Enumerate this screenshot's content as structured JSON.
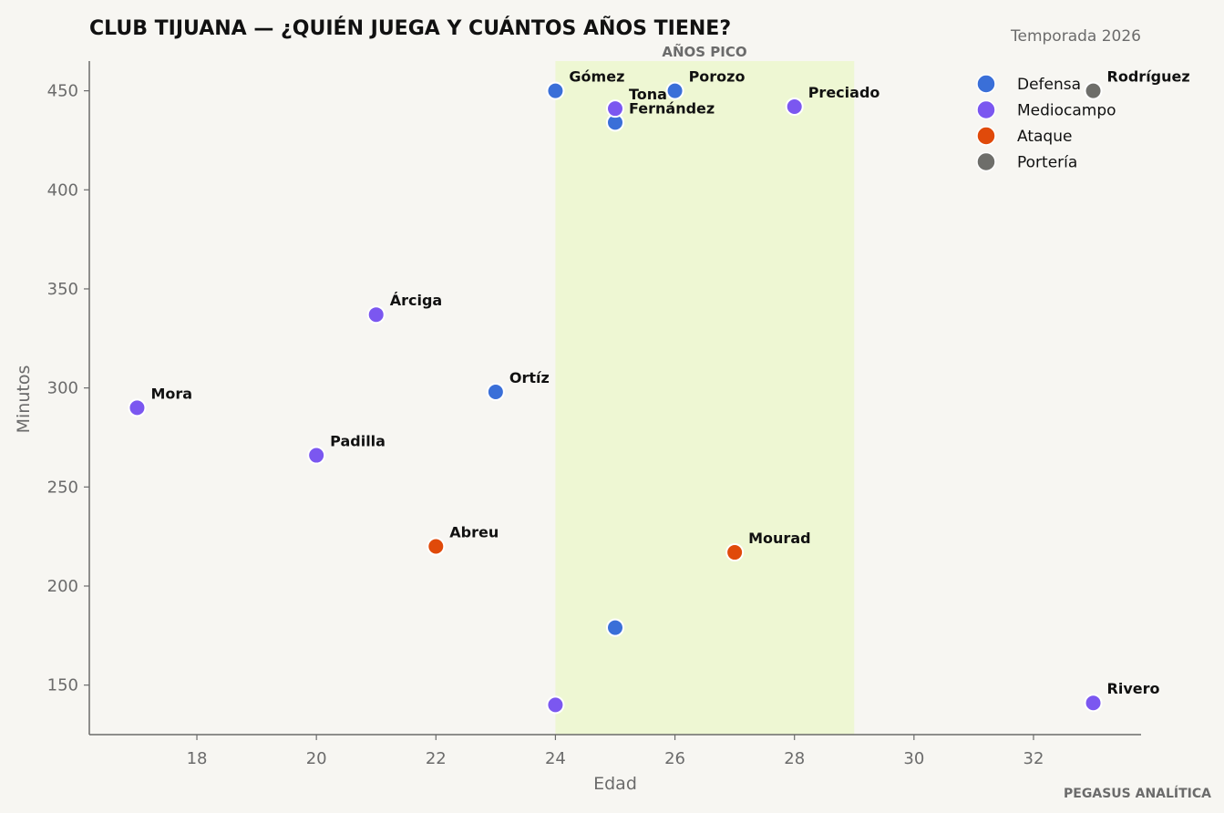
{
  "chart_data": {
    "type": "scatter",
    "title": "CLUB TIJUANA — ¿QUIÉN JUEGA Y CUÁNTOS AÑOS TIENE?",
    "subtitle": "Temporada 2026",
    "xlabel": "Edad",
    "ylabel": "Minutos",
    "xlim": [
      16.2,
      33.8
    ],
    "ylim": [
      125,
      465
    ],
    "xticks": [
      18,
      20,
      22,
      24,
      26,
      28,
      30,
      32
    ],
    "yticks": [
      150,
      200,
      250,
      300,
      350,
      400,
      450
    ],
    "grid": false,
    "legend_position": "top-right",
    "highlight_band": {
      "label": "AÑOS PICO",
      "x_from": 24,
      "x_to": 29,
      "color": "#eef7d3"
    },
    "series": [
      {
        "name": "Defensa",
        "color": "#3a6fd8",
        "points": [
          {
            "x": 24,
            "y": 450,
            "label": "Gómez"
          },
          {
            "x": 26,
            "y": 450,
            "label": "Porozo"
          },
          {
            "x": 25,
            "y": 434,
            "label": "Fernández"
          },
          {
            "x": 23,
            "y": 298,
            "label": "Ortíz"
          },
          {
            "x": 25,
            "y": 179,
            "label": ""
          }
        ]
      },
      {
        "name": "Mediocampo",
        "color": "#7b57f0",
        "points": [
          {
            "x": 25,
            "y": 441,
            "label": "Tona"
          },
          {
            "x": 28,
            "y": 442,
            "label": "Preciado"
          },
          {
            "x": 21,
            "y": 337,
            "label": "Árciga"
          },
          {
            "x": 17,
            "y": 290,
            "label": "Mora"
          },
          {
            "x": 20,
            "y": 266,
            "label": "Padilla"
          },
          {
            "x": 24,
            "y": 140,
            "label": ""
          },
          {
            "x": 33,
            "y": 141,
            "label": "Rivero"
          }
        ]
      },
      {
        "name": "Ataque",
        "color": "#e04a0a",
        "points": [
          {
            "x": 22,
            "y": 220,
            "label": "Abreu"
          },
          {
            "x": 27,
            "y": 217,
            "label": "Mourad"
          }
        ]
      },
      {
        "name": "Portería",
        "color": "#6e6e6a",
        "points": [
          {
            "x": 33,
            "y": 450,
            "label": "Rodríguez"
          }
        ]
      }
    ]
  },
  "credit": "PEGASUS ANALÍTICA"
}
